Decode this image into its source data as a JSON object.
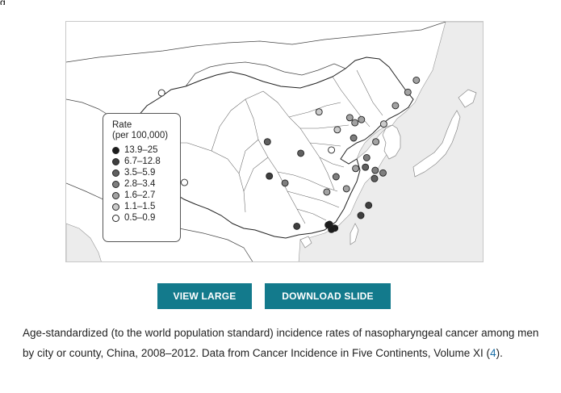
{
  "figure": {
    "corner_glyph": "g",
    "legend": {
      "title": "Rate",
      "subtitle": "(per 100,000)",
      "items": [
        {
          "label": "13.9–25",
          "color": "#1c1c1c"
        },
        {
          "label": "6.7–12.8",
          "color": "#3f3f3f"
        },
        {
          "label": "3.5–5.9",
          "color": "#606060"
        },
        {
          "label": "2.8–3.4",
          "color": "#7e7e7e"
        },
        {
          "label": "1.6–2.7",
          "color": "#a3a3a3"
        },
        {
          "label": "1.1–1.5",
          "color": "#cbcbcb"
        },
        {
          "label": "0.5–0.9",
          "color": "#ffffff"
        }
      ]
    },
    "points": [
      {
        "lon": 87.6,
        "lat": 43.8,
        "class": 6
      },
      {
        "lon": 103.8,
        "lat": 36.1,
        "class": 2
      },
      {
        "lon": 108.9,
        "lat": 34.3,
        "class": 2
      },
      {
        "lon": 113.6,
        "lat": 34.8,
        "class": 6
      },
      {
        "lon": 111.7,
        "lat": 40.8,
        "class": 5
      },
      {
        "lon": 114.5,
        "lat": 38.0,
        "class": 5
      },
      {
        "lon": 116.4,
        "lat": 39.9,
        "class": 4
      },
      {
        "lon": 117.2,
        "lat": 39.1,
        "class": 4
      },
      {
        "lon": 118.2,
        "lat": 39.6,
        "class": 4
      },
      {
        "lon": 117.0,
        "lat": 36.7,
        "class": 3
      },
      {
        "lon": 120.4,
        "lat": 36.1,
        "class": 4
      },
      {
        "lon": 118.8,
        "lat": 32.1,
        "class": 2
      },
      {
        "lon": 120.3,
        "lat": 31.6,
        "class": 3
      },
      {
        "lon": 121.5,
        "lat": 31.2,
        "class": 3
      },
      {
        "lon": 120.2,
        "lat": 30.3,
        "class": 2
      },
      {
        "lon": 119.0,
        "lat": 33.6,
        "class": 3
      },
      {
        "lon": 117.3,
        "lat": 31.9,
        "class": 4
      },
      {
        "lon": 114.3,
        "lat": 30.6,
        "class": 3
      },
      {
        "lon": 115.9,
        "lat": 28.7,
        "class": 4
      },
      {
        "lon": 112.9,
        "lat": 28.2,
        "class": 4
      },
      {
        "lon": 119.3,
        "lat": 26.1,
        "class": 1
      },
      {
        "lon": 118.1,
        "lat": 24.5,
        "class": 1
      },
      {
        "lon": 113.3,
        "lat": 23.1,
        "class": 0
      },
      {
        "lon": 114.1,
        "lat": 22.5,
        "class": 0
      },
      {
        "lon": 113.6,
        "lat": 22.3,
        "class": 0
      },
      {
        "lon": 113.1,
        "lat": 23.0,
        "class": 0
      },
      {
        "lon": 108.3,
        "lat": 22.8,
        "class": 1
      },
      {
        "lon": 123.4,
        "lat": 41.8,
        "class": 4
      },
      {
        "lon": 125.3,
        "lat": 43.9,
        "class": 4
      },
      {
        "lon": 126.6,
        "lat": 45.8,
        "class": 4
      },
      {
        "lon": 121.6,
        "lat": 38.9,
        "class": 5
      },
      {
        "lon": 104.1,
        "lat": 30.7,
        "class": 1
      },
      {
        "lon": 106.5,
        "lat": 29.6,
        "class": 3
      },
      {
        "lon": 91.1,
        "lat": 29.7,
        "class": 6
      }
    ]
  },
  "buttons": {
    "view_large": "VIEW LARGE",
    "download_slide": "DOWNLOAD SLIDE"
  },
  "caption": {
    "text": "Age-standardized (to the world population standard) incidence rates of nasopharyngeal cancer among men by city or county, China, 2008–2012. Data from Cancer Incidence in Five Continents, Volume XI (",
    "ref": "4",
    "suffix": ")."
  }
}
